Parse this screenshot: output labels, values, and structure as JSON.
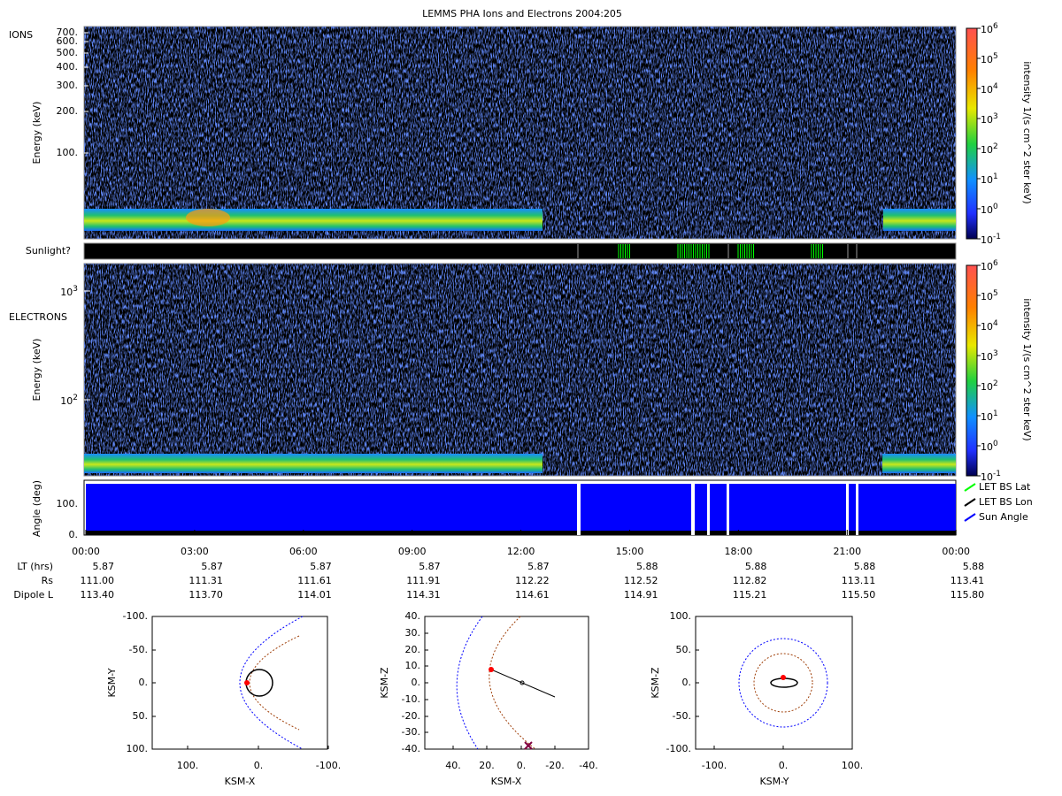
{
  "title": "LEMMS PHA Ions and Electrons  2004:205",
  "ions_panel": {
    "label": "IONS",
    "y_label": "Energy (keV)",
    "y_ticks": [
      "700.",
      "600.",
      "500.",
      "400.",
      "300.",
      "200.",
      "100."
    ]
  },
  "sunlight_label": "Sunlight?",
  "electrons_panel": {
    "label": "ELECTRONS",
    "y_label": "Energy (keV)",
    "y_ticks": [
      {
        "base": "10",
        "exp": "3"
      },
      {
        "base": "10",
        "exp": "2"
      }
    ]
  },
  "colorbars": [
    {
      "label": "intensity 1/(s cm^2 ster keV)",
      "ticks": [
        {
          "base": "10",
          "exp": "6"
        },
        {
          "base": "10",
          "exp": "5"
        },
        {
          "base": "10",
          "exp": "4"
        },
        {
          "base": "10",
          "exp": "3"
        },
        {
          "base": "10",
          "exp": "2"
        },
        {
          "base": "10",
          "exp": "1"
        },
        {
          "base": "10",
          "exp": "0"
        },
        {
          "base": "10",
          "exp": "-1"
        }
      ]
    },
    {
      "label": "intensity 1/(s cm^2 ster keV)",
      "ticks": [
        {
          "base": "10",
          "exp": "6"
        },
        {
          "base": "10",
          "exp": "5"
        },
        {
          "base": "10",
          "exp": "4"
        },
        {
          "base": "10",
          "exp": "3"
        },
        {
          "base": "10",
          "exp": "2"
        },
        {
          "base": "10",
          "exp": "1"
        },
        {
          "base": "10",
          "exp": "0"
        },
        {
          "base": "10",
          "exp": "-1"
        }
      ]
    }
  ],
  "angle_panel": {
    "y_label": "Angle (deg)",
    "y_ticks": [
      "100.",
      "0."
    ],
    "legend": [
      {
        "name": "LET BS Lat",
        "color": "#00ff00"
      },
      {
        "name": "LET BS Lon",
        "color": "#000000"
      },
      {
        "name": "Sun Angle",
        "color": "#0000ff"
      }
    ]
  },
  "time_ticks": [
    "00:00",
    "03:00",
    "06:00",
    "09:00",
    "12:00",
    "15:00",
    "18:00",
    "21:00",
    "00:00"
  ],
  "ephemeris": [
    {
      "label": "LT (hrs)",
      "values": [
        "5.87",
        "5.87",
        "5.87",
        "5.87",
        "5.87",
        "5.88",
        "5.88",
        "5.88",
        "5.88"
      ]
    },
    {
      "label": "Rs",
      "values": [
        "111.00",
        "111.31",
        "111.61",
        "111.91",
        "112.22",
        "112.52",
        "112.82",
        "113.11",
        "113.41"
      ]
    },
    {
      "label": "Dipole L",
      "values": [
        "113.40",
        "113.70",
        "114.01",
        "114.31",
        "114.61",
        "114.91",
        "115.21",
        "115.50",
        "115.80"
      ]
    }
  ],
  "orbit_plots": [
    {
      "x_label": "KSM-X",
      "y_label": "KSM-Y",
      "x_ticks": [
        "100.",
        "0.",
        "-100."
      ],
      "y_ticks": [
        "-100.",
        "-50.",
        "0.",
        "50.",
        "100."
      ]
    },
    {
      "x_label": "KSM-X",
      "y_label": "KSM-Z",
      "x_ticks": [
        "40.",
        "20.",
        "0.",
        "-20.",
        "-40."
      ],
      "y_ticks": [
        "40.",
        "30.",
        "20.",
        "10.",
        "0.",
        "-10.",
        "-20.",
        "-30.",
        "-40."
      ]
    },
    {
      "x_label": "KSM-Y",
      "y_label": "KSM-Z",
      "x_ticks": [
        "-100.",
        "0.",
        "100."
      ],
      "y_ticks": [
        "100.",
        "50.",
        "0.",
        "-50.",
        "-100."
      ]
    }
  ]
}
